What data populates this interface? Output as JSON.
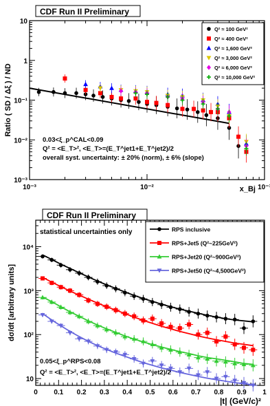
{
  "chart_data": [
    {
      "type": "scatter",
      "title": "CDF Run II Preliminary",
      "xlabel": "x_Bj",
      "ylabel": "Ratio ( SD / Δξ ) / ND",
      "xscale": "log",
      "yscale": "log",
      "xlim": [
        0.001,
        0.1
      ],
      "ylim": [
        0.001,
        10
      ],
      "x_tick_labels": [
        "10⁻³",
        "10⁻²",
        "10⁻¹"
      ],
      "y_tick_labels": [
        "10",
        "1",
        "10⁻¹",
        "10⁻²",
        "10⁻³"
      ],
      "legend_position": "top-right",
      "annotations": [
        "0.03<ξ_p^CAL<0.09",
        "Q² = <E_T>², <E_T>=(E_T^jet1+E_T^jet2)/2",
        "overall syst. uncertainty: ± 20% (norm), ± 6% (slope)"
      ],
      "fit_line": {
        "x": [
          0.001,
          0.05
        ],
        "y": [
          0.2,
          0.026
        ]
      },
      "series": [
        {
          "name": "Q² ≈ 100 GeV²",
          "color": "#000000",
          "marker": "circle",
          "x": [
            0.0012,
            0.0016,
            0.002,
            0.0025,
            0.003,
            0.0035,
            0.0042,
            0.005,
            0.006,
            0.007,
            0.0085,
            0.01,
            0.012,
            0.015,
            0.018,
            0.022,
            0.027,
            0.032,
            0.04,
            0.05,
            0.06
          ],
          "y": [
            0.16,
            0.16,
            0.15,
            0.15,
            0.14,
            0.13,
            0.12,
            0.11,
            0.1,
            0.095,
            0.09,
            0.08,
            0.075,
            0.068,
            0.062,
            0.058,
            0.05,
            0.042,
            0.035,
            0.02,
            0.007
          ]
        },
        {
          "name": "Q² ≈ 400 GeV²",
          "color": "#ff0000",
          "marker": "square",
          "x": [
            0.002,
            0.003,
            0.004,
            0.005,
            0.006,
            0.008,
            0.01,
            0.012,
            0.015,
            0.02,
            0.025,
            0.03,
            0.035,
            0.04,
            0.05,
            0.06,
            0.07
          ],
          "y": [
            0.35,
            0.18,
            0.15,
            0.12,
            0.11,
            0.11,
            0.09,
            0.085,
            0.075,
            0.06,
            0.06,
            0.055,
            0.05,
            0.05,
            0.035,
            0.012,
            0.005
          ]
        },
        {
          "name": "Q² ≈ 1,600 GeV²",
          "color": "#0000ff",
          "marker": "triangle",
          "x": [
            0.003,
            0.004,
            0.005,
            0.006,
            0.008,
            0.01,
            0.015,
            0.02,
            0.03,
            0.04,
            0.05,
            0.07
          ],
          "y": [
            0.25,
            0.22,
            0.2,
            0.18,
            0.17,
            0.16,
            0.14,
            0.13,
            0.1,
            0.08,
            0.05,
            0.008
          ]
        },
        {
          "name": "Q² ≈ 3,000 GeV²",
          "color": "#dcc800",
          "marker": "triangle-down",
          "x": [
            0.004,
            0.006,
            0.008,
            0.01,
            0.015,
            0.02,
            0.03,
            0.04,
            0.05,
            0.07
          ],
          "y": [
            0.2,
            0.18,
            0.17,
            0.16,
            0.13,
            0.12,
            0.1,
            0.07,
            0.04,
            0.009
          ]
        },
        {
          "name": "Q² ≈ 6,000 GeV²",
          "color": "#e600e6",
          "marker": "diamond",
          "x": [
            0.006,
            0.008,
            0.01,
            0.015,
            0.02,
            0.03,
            0.04,
            0.05,
            0.07
          ],
          "y": [
            0.17,
            0.16,
            0.15,
            0.12,
            0.11,
            0.09,
            0.06,
            0.05,
            0.007
          ]
        },
        {
          "name": "Q² ≈ 10,000 GeV²",
          "color": "#00aa00",
          "marker": "cross",
          "x": [
            0.008,
            0.01,
            0.015,
            0.02,
            0.03,
            0.04,
            0.05,
            0.07
          ],
          "y": [
            0.15,
            0.14,
            0.12,
            0.1,
            0.08,
            0.06,
            0.04,
            0.006
          ]
        }
      ]
    },
    {
      "type": "scatter",
      "title": "CDF Run II Preliminary",
      "xlabel": "|t| (GeV/c)²",
      "ylabel": "dσ/dt [arbitrary units]",
      "yscale": "log",
      "xlim": [
        0,
        1.0
      ],
      "ylim": [
        7,
        40000
      ],
      "x_tick_labels": [
        "0",
        "0.1",
        "0.2",
        "0.3",
        "0.4",
        "0.5",
        "0.6",
        "0.7",
        "0.8",
        "0.9",
        "1"
      ],
      "y_tick_labels": [
        "10",
        "10²",
        "10³",
        "10⁴"
      ],
      "legend_position": "top-right",
      "annotations": [
        "statistical uncertainties only",
        "0.05<ξ_p^RPS<0.08",
        "Q² = <E_T>², <E_T>=(E_T^jet1+E_T^jet2)/2"
      ],
      "series": [
        {
          "name": "RPS inclusive",
          "color": "#000000",
          "marker": "circle",
          "x": [
            0.03,
            0.07,
            0.11,
            0.15,
            0.19,
            0.23,
            0.27,
            0.31,
            0.35,
            0.39,
            0.43,
            0.47,
            0.51,
            0.55,
            0.59,
            0.63,
            0.67,
            0.71,
            0.75,
            0.79,
            0.83,
            0.87,
            0.91,
            0.95
          ],
          "y": [
            6000,
            5000,
            3800,
            3000,
            2500,
            2000,
            1600,
            1300,
            1100,
            900,
            750,
            650,
            550,
            480,
            420,
            380,
            330,
            300,
            270,
            250,
            230,
            220,
            140,
            200
          ],
          "fit": [
            6500,
            5100,
            4000,
            3200,
            2550,
            2050,
            1650,
            1350,
            1120,
            930,
            780,
            660,
            570,
            490,
            430,
            380,
            340,
            305,
            275,
            250,
            230,
            215,
            205,
            195
          ]
        },
        {
          "name": "RPS+Jet5 (Q²~225GeV²)",
          "color": "#ff0000",
          "marker": "square",
          "x": [
            0.03,
            0.07,
            0.11,
            0.15,
            0.19,
            0.23,
            0.27,
            0.31,
            0.35,
            0.39,
            0.43,
            0.47,
            0.51,
            0.55,
            0.59,
            0.63,
            0.67,
            0.71,
            0.75,
            0.79,
            0.83,
            0.87,
            0.91,
            0.95
          ],
          "y": [
            1900,
            1500,
            1200,
            1000,
            800,
            600,
            500,
            430,
            360,
            300,
            260,
            210,
            230,
            180,
            150,
            140,
            170,
            100,
            110,
            70,
            90,
            60,
            50,
            45
          ],
          "fit": [
            2000,
            1560,
            1230,
            980,
            790,
            640,
            520,
            430,
            360,
            300,
            250,
            210,
            180,
            155,
            135,
            118,
            105,
            93,
            84,
            76,
            70,
            64,
            60,
            56
          ]
        },
        {
          "name": "RPS+Jet20 (Q²~900GeV²)",
          "color": "#33cc33",
          "marker": "triangle",
          "x": [
            0.03,
            0.07,
            0.11,
            0.15,
            0.19,
            0.23,
            0.27,
            0.31,
            0.35,
            0.39,
            0.43,
            0.47,
            0.51,
            0.55,
            0.59,
            0.63,
            0.67,
            0.71,
            0.75,
            0.79,
            0.83,
            0.87,
            0.91,
            0.95
          ],
          "y": [
            700,
            550,
            420,
            320,
            260,
            200,
            160,
            130,
            110,
            90,
            80,
            70,
            60,
            50,
            45,
            40,
            35,
            30,
            28,
            25,
            24,
            22,
            21,
            20
          ],
          "fit": [
            720,
            560,
            430,
            330,
            260,
            205,
            165,
            135,
            112,
            93,
            79,
            68,
            59,
            52,
            46,
            41,
            37,
            33,
            30,
            28,
            26,
            24,
            22,
            21
          ]
        },
        {
          "name": "RPS+Jet50 (Q²~4,500GeV²)",
          "color": "#6666dd",
          "marker": "triangle-down",
          "x": [
            0.03,
            0.07,
            0.11,
            0.15,
            0.19,
            0.23,
            0.27,
            0.31,
            0.35,
            0.39,
            0.43,
            0.47,
            0.51,
            0.55,
            0.59,
            0.63,
            0.67,
            0.71,
            0.75,
            0.79,
            0.83,
            0.87,
            0.91,
            0.95
          ],
          "y": [
            280,
            200,
            160,
            110,
            80,
            70,
            55,
            45,
            40,
            35,
            28,
            22,
            25,
            20,
            17,
            14,
            17,
            12,
            14,
            10,
            11,
            9,
            8,
            7
          ],
          "fit": [
            300,
            215,
            158,
            118,
            90,
            70,
            56,
            46,
            38,
            32,
            27,
            23,
            20,
            17.5,
            15.5,
            13.8,
            12.4,
            11.2,
            10.2,
            9.4,
            8.7,
            8.1,
            7.6,
            7.2
          ]
        }
      ]
    }
  ]
}
